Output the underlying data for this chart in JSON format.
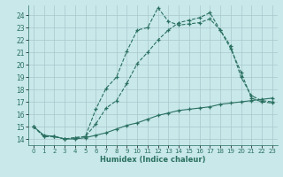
{
  "xlabel": "Humidex (Indice chaleur)",
  "xlim": [
    -0.5,
    23.5
  ],
  "ylim": [
    13.5,
    24.8
  ],
  "xticks": [
    0,
    1,
    2,
    3,
    4,
    5,
    6,
    7,
    8,
    9,
    10,
    11,
    12,
    13,
    14,
    15,
    16,
    17,
    18,
    19,
    20,
    21,
    22,
    23
  ],
  "yticks": [
    14,
    15,
    16,
    17,
    18,
    19,
    20,
    21,
    22,
    23,
    24
  ],
  "bg_color": "#c8e8ea",
  "grid_color": "#a8c8cc",
  "line_color": "#2a7060",
  "lines": [
    {
      "x": [
        0,
        1,
        2,
        3,
        4,
        5,
        6,
        7,
        8,
        9,
        10,
        11,
        12,
        13,
        14,
        15,
        16,
        17,
        18,
        19,
        20,
        21,
        22,
        23
      ],
      "y": [
        15.0,
        14.2,
        14.2,
        14.0,
        14.1,
        14.2,
        16.4,
        18.1,
        19.0,
        21.1,
        22.8,
        23.0,
        24.6,
        23.5,
        23.2,
        23.3,
        23.4,
        23.7,
        22.8,
        21.3,
        19.4,
        17.3,
        17.0,
        16.9
      ],
      "linestyle": "--"
    },
    {
      "x": [
        0,
        1,
        2,
        3,
        4,
        5,
        6,
        7,
        8,
        9,
        10,
        11,
        12,
        13,
        14,
        15,
        16,
        17,
        18,
        19,
        20,
        21,
        22,
        23
      ],
      "y": [
        15.0,
        14.2,
        14.2,
        14.0,
        14.1,
        14.2,
        15.2,
        16.5,
        17.1,
        18.5,
        20.1,
        21.0,
        22.0,
        22.8,
        23.4,
        23.6,
        23.8,
        24.2,
        22.8,
        21.5,
        19.0,
        17.5,
        17.1,
        17.0
      ],
      "linestyle": "--"
    },
    {
      "x": [
        0,
        1,
        2,
        3,
        4,
        5,
        6,
        7,
        8,
        9,
        10,
        11,
        12,
        13,
        14,
        15,
        16,
        17,
        18,
        19,
        20,
        21,
        22,
        23
      ],
      "y": [
        15.0,
        14.3,
        14.2,
        14.0,
        14.0,
        14.1,
        14.3,
        14.5,
        14.8,
        15.1,
        15.3,
        15.6,
        15.9,
        16.1,
        16.3,
        16.4,
        16.5,
        16.6,
        16.8,
        16.9,
        17.0,
        17.1,
        17.2,
        17.3
      ],
      "linestyle": "-"
    }
  ]
}
